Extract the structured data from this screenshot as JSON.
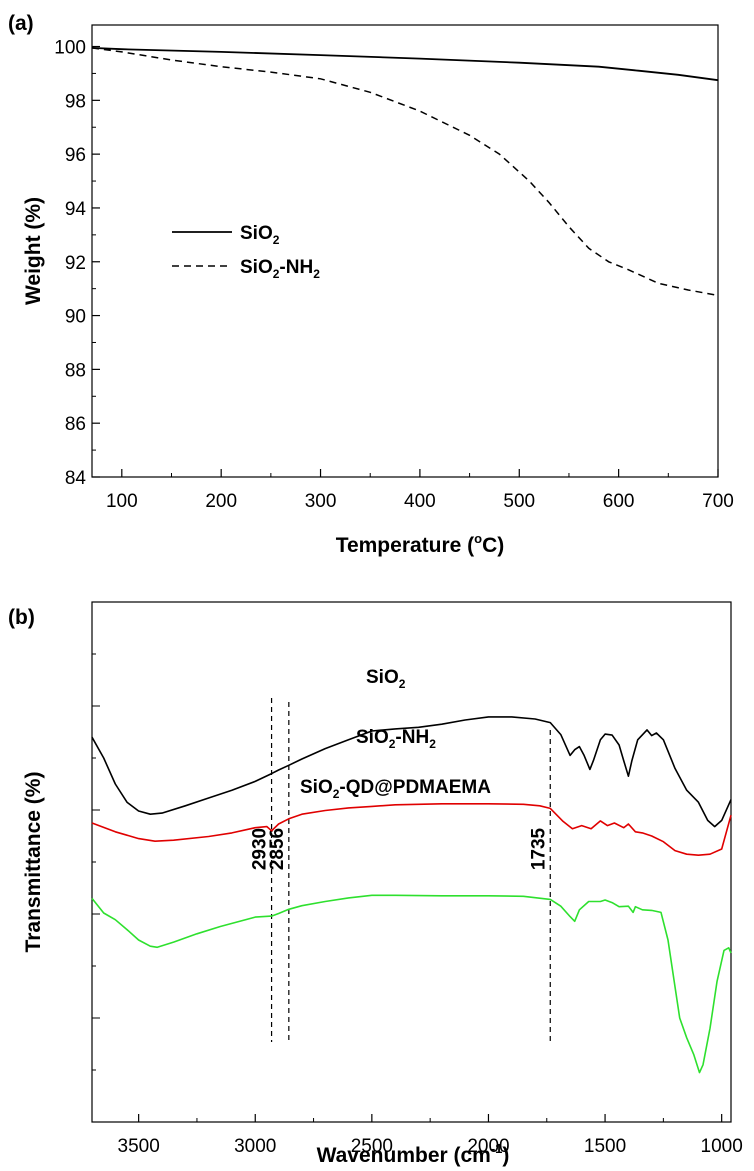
{
  "chart_data": [
    {
      "panel_label": "(a)",
      "type": "line",
      "xlabel_main": "Temperature (",
      "xlabel_sup": "o",
      "xlabel_tail": "C)",
      "ylabel": "Weight (%)",
      "xlim": [
        70,
        700
      ],
      "ylim": [
        84,
        100.8
      ],
      "xticks": [
        100,
        200,
        300,
        400,
        500,
        600,
        700
      ],
      "yticks": [
        84,
        86,
        88,
        90,
        92,
        94,
        96,
        98,
        100
      ],
      "grid": false,
      "legend_position": "middle-left",
      "series": [
        {
          "name_main": "SiO",
          "name_sub": "2",
          "name_tail": "",
          "style": "solid",
          "color": "#000000",
          "points": [
            [
              70,
              99.95
            ],
            [
              100,
              99.9
            ],
            [
              200,
              99.8
            ],
            [
              300,
              99.68
            ],
            [
              400,
              99.55
            ],
            [
              500,
              99.4
            ],
            [
              580,
              99.25
            ],
            [
              620,
              99.1
            ],
            [
              660,
              98.95
            ],
            [
              700,
              98.75
            ]
          ]
        },
        {
          "name_main": "SiO",
          "name_sub": "2",
          "name_tail": "-NH",
          "name_sub2": "2",
          "style": "dashed",
          "color": "#000000",
          "points": [
            [
              70,
              99.95
            ],
            [
              100,
              99.8
            ],
            [
              150,
              99.5
            ],
            [
              200,
              99.25
            ],
            [
              250,
              99.05
            ],
            [
              300,
              98.8
            ],
            [
              350,
              98.3
            ],
            [
              400,
              97.6
            ],
            [
              450,
              96.7
            ],
            [
              480,
              96.0
            ],
            [
              510,
              95.0
            ],
            [
              530,
              94.2
            ],
            [
              550,
              93.3
            ],
            [
              570,
              92.5
            ],
            [
              590,
              92.0
            ],
            [
              610,
              91.7
            ],
            [
              640,
              91.2
            ],
            [
              670,
              90.95
            ],
            [
              700,
              90.75
            ]
          ]
        }
      ]
    },
    {
      "panel_label": "(b)",
      "type": "line",
      "xlabel_main": "Wavenumber (cm",
      "xlabel_sup": "-1",
      "xlabel_tail": ")",
      "ylabel": "Transmittance (%)",
      "xlim": [
        3700,
        960
      ],
      "ylim": [
        0,
        100
      ],
      "xticks": [
        3500,
        3000,
        2500,
        2000,
        1500,
        1000
      ],
      "grid": false,
      "reference_lines": [
        {
          "x": 2930,
          "label": "2930"
        },
        {
          "x": 2856,
          "label": "2856"
        },
        {
          "x": 1735,
          "label": "1735"
        }
      ],
      "series": [
        {
          "name_main": "SiO",
          "name_sub": "2",
          "name_tail": "",
          "color": "#000000",
          "points": [
            [
              3700,
              74
            ],
            [
              3650,
              70
            ],
            [
              3600,
              65
            ],
            [
              3550,
              61.5
            ],
            [
              3500,
              59.8
            ],
            [
              3450,
              59.2
            ],
            [
              3400,
              59.4
            ],
            [
              3300,
              60.8
            ],
            [
              3200,
              62.3
            ],
            [
              3100,
              63.8
            ],
            [
              3000,
              65.5
            ],
            [
              2930,
              67.0
            ],
            [
              2900,
              67.7
            ],
            [
              2856,
              68.6
            ],
            [
              2800,
              69.8
            ],
            [
              2700,
              71.8
            ],
            [
              2600,
              73.5
            ],
            [
              2500,
              75.2
            ],
            [
              2400,
              75.6
            ],
            [
              2300,
              75.9
            ],
            [
              2200,
              76.5
            ],
            [
              2100,
              77.3
            ],
            [
              2000,
              77.9
            ],
            [
              1900,
              77.9
            ],
            [
              1800,
              77.5
            ],
            [
              1735,
              76.8
            ],
            [
              1690,
              74.5
            ],
            [
              1650,
              70.5
            ],
            [
              1630,
              71.6
            ],
            [
              1610,
              72.2
            ],
            [
              1590,
              70.5
            ],
            [
              1565,
              67.8
            ],
            [
              1550,
              69.5
            ],
            [
              1520,
              73.5
            ],
            [
              1500,
              74.6
            ],
            [
              1470,
              74.4
            ],
            [
              1440,
              72.5
            ],
            [
              1420,
              69.5
            ],
            [
              1400,
              66.5
            ],
            [
              1385,
              69.5
            ],
            [
              1360,
              73.5
            ],
            [
              1320,
              75.4
            ],
            [
              1300,
              74.3
            ],
            [
              1280,
              74.8
            ],
            [
              1250,
              73.5
            ],
            [
              1200,
              68.0
            ],
            [
              1150,
              63.8
            ],
            [
              1100,
              61.5
            ],
            [
              1060,
              58.0
            ],
            [
              1030,
              56.8
            ],
            [
              1000,
              58.0
            ],
            [
              960,
              62.0
            ]
          ]
        },
        {
          "name_main": "SiO",
          "name_sub": "2",
          "name_tail": "-NH",
          "name_sub2": "2",
          "color": "#e00000",
          "points": [
            [
              3700,
              57.5
            ],
            [
              3600,
              55.8
            ],
            [
              3500,
              54.5
            ],
            [
              3430,
              54.0
            ],
            [
              3350,
              54.2
            ],
            [
              3200,
              54.9
            ],
            [
              3100,
              55.6
            ],
            [
              3000,
              56.6
            ],
            [
              2950,
              56.8
            ],
            [
              2930,
              56.0
            ],
            [
              2900,
              57.3
            ],
            [
              2856,
              58.3
            ],
            [
              2800,
              59.2
            ],
            [
              2700,
              59.9
            ],
            [
              2600,
              60.4
            ],
            [
              2500,
              60.7
            ],
            [
              2400,
              61.0
            ],
            [
              2300,
              61.1
            ],
            [
              2200,
              61.2
            ],
            [
              2000,
              61.2
            ],
            [
              1850,
              61.1
            ],
            [
              1780,
              60.8
            ],
            [
              1735,
              60.3
            ],
            [
              1680,
              57.8
            ],
            [
              1640,
              56.4
            ],
            [
              1600,
              57.0
            ],
            [
              1560,
              56.4
            ],
            [
              1520,
              57.9
            ],
            [
              1490,
              57.0
            ],
            [
              1460,
              57.5
            ],
            [
              1420,
              56.6
            ],
            [
              1400,
              57.3
            ],
            [
              1370,
              55.8
            ],
            [
              1340,
              55.6
            ],
            [
              1300,
              55.0
            ],
            [
              1250,
              53.9
            ],
            [
              1200,
              52.2
            ],
            [
              1150,
              51.5
            ],
            [
              1100,
              51.3
            ],
            [
              1050,
              51.5
            ],
            [
              1000,
              52.5
            ],
            [
              960,
              59.0
            ]
          ]
        },
        {
          "name_main": "SiO",
          "name_sub": "2",
          "name_tail": "-QD@PDMAEMA",
          "color": "#2ee02e",
          "points": [
            [
              3700,
              43.0
            ],
            [
              3650,
              40.2
            ],
            [
              3600,
              38.9
            ],
            [
              3550,
              37.0
            ],
            [
              3500,
              35.0
            ],
            [
              3450,
              33.8
            ],
            [
              3420,
              33.6
            ],
            [
              3350,
              34.6
            ],
            [
              3250,
              36.2
            ],
            [
              3150,
              37.6
            ],
            [
              3000,
              39.4
            ],
            [
              2930,
              39.6
            ],
            [
              2900,
              40.1
            ],
            [
              2856,
              40.9
            ],
            [
              2800,
              41.6
            ],
            [
              2700,
              42.4
            ],
            [
              2600,
              43.1
            ],
            [
              2500,
              43.6
            ],
            [
              2400,
              43.6
            ],
            [
              2200,
              43.5
            ],
            [
              2000,
              43.5
            ],
            [
              1850,
              43.4
            ],
            [
              1735,
              42.8
            ],
            [
              1690,
              41.5
            ],
            [
              1650,
              39.5
            ],
            [
              1630,
              38.6
            ],
            [
              1610,
              40.8
            ],
            [
              1570,
              42.4
            ],
            [
              1520,
              42.4
            ],
            [
              1500,
              42.7
            ],
            [
              1470,
              42.2
            ],
            [
              1440,
              41.4
            ],
            [
              1400,
              41.5
            ],
            [
              1380,
              40.3
            ],
            [
              1370,
              41.4
            ],
            [
              1340,
              40.8
            ],
            [
              1300,
              40.7
            ],
            [
              1260,
              40.3
            ],
            [
              1230,
              35.0
            ],
            [
              1200,
              26.0
            ],
            [
              1180,
              20.0
            ],
            [
              1150,
              16.2
            ],
            [
              1120,
              13.0
            ],
            [
              1095,
              9.5
            ],
            [
              1080,
              11.0
            ],
            [
              1050,
              18.0
            ],
            [
              1020,
              27.0
            ],
            [
              990,
              33.0
            ],
            [
              970,
              33.5
            ],
            [
              960,
              32.5
            ]
          ]
        }
      ]
    }
  ]
}
